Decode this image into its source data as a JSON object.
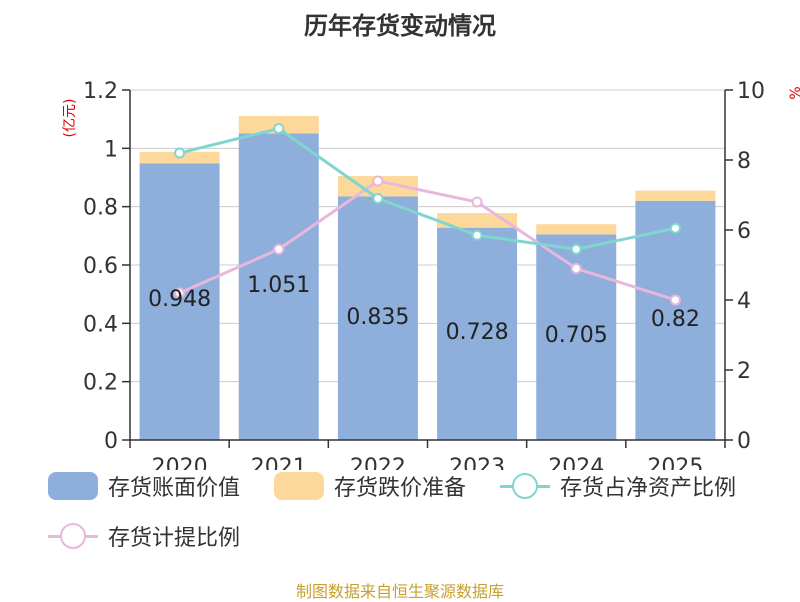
{
  "title": "历年存货变动情况",
  "source": "制图数据来自恒生聚源数据库",
  "chart_data": {
    "type": "bar",
    "title": "历年存货变动情况",
    "y_left_label": "(亿元)",
    "y_right_label": "%",
    "categories": [
      "2020",
      "2021",
      "2022",
      "2023",
      "2024",
      "2025"
    ],
    "y_left_ticks": [
      "0",
      "0.2",
      "0.4",
      "0.6",
      "0.8",
      "1",
      "1.2"
    ],
    "y_right_ticks": [
      "0",
      "2",
      "4",
      "6",
      "8",
      "10"
    ],
    "ylim_left": [
      0,
      1.2
    ],
    "ylim_right": [
      0,
      10
    ],
    "stacked": true,
    "grid": true,
    "legend_position": "bottom",
    "series": [
      {
        "name": "存货账面价值",
        "kind": "bar",
        "axis": "left",
        "color": "#8eaedb",
        "values": [
          0.948,
          1.051,
          0.835,
          0.728,
          0.705,
          0.82
        ],
        "labels": [
          "0.948",
          "1.051",
          "0.835",
          "0.728",
          "0.705",
          "0.82"
        ]
      },
      {
        "name": "存货跌价准备",
        "kind": "bar",
        "axis": "left",
        "color": "#fcd99a",
        "values": [
          0.04,
          0.06,
          0.07,
          0.05,
          0.035,
          0.035
        ]
      },
      {
        "name": "存货占净资产比例",
        "kind": "line",
        "axis": "right",
        "color": "#7fd6d0",
        "values": [
          8.2,
          8.9,
          6.9,
          5.85,
          5.45,
          6.05
        ]
      },
      {
        "name": "存货计提比例",
        "kind": "line",
        "axis": "right",
        "color": "#e8b8dc",
        "values": [
          4.2,
          5.45,
          7.4,
          6.8,
          4.9,
          4.0
        ]
      }
    ]
  }
}
